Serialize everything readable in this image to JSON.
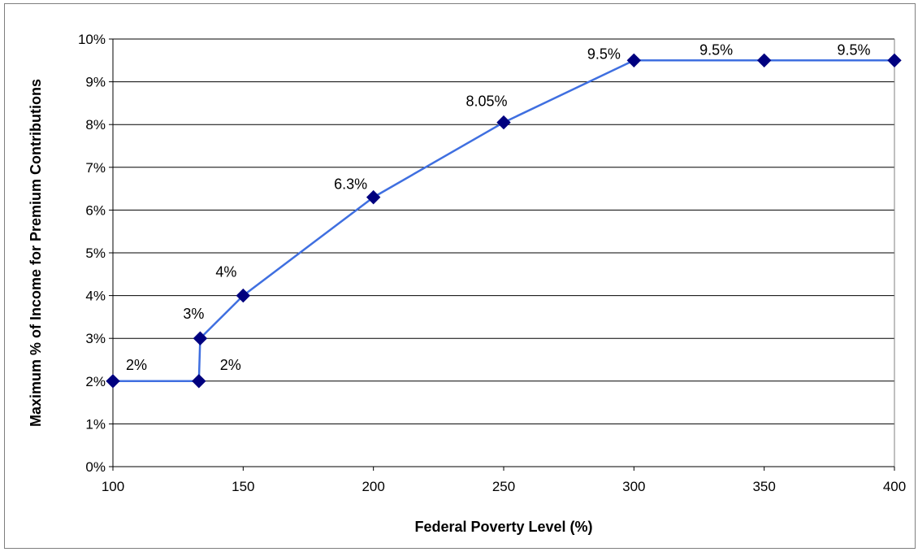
{
  "chart_data": {
    "type": "line",
    "title": "",
    "xlabel": "Federal Poverty Level (%)",
    "ylabel": "Maximum % of Income for Premium Contributions",
    "xlim": [
      100,
      400
    ],
    "ylim": [
      0,
      10
    ],
    "x_ticks": [
      100,
      150,
      200,
      250,
      300,
      350,
      400
    ],
    "y_ticks": [
      0,
      1,
      2,
      3,
      4,
      5,
      6,
      7,
      8,
      9,
      10
    ],
    "y_tick_labels": [
      "0%",
      "1%",
      "2%",
      "3%",
      "4%",
      "5%",
      "6%",
      "7%",
      "8%",
      "9%",
      "10%"
    ],
    "grid": "horizontal",
    "legend": "none",
    "series": [
      {
        "line_color": "#3f6fe0",
        "marker_color": "#00007f",
        "marker": "diamond",
        "points": [
          {
            "x": 100,
            "y": 2,
            "label": "2%"
          },
          {
            "x": 133,
            "y": 2,
            "label": "2%"
          },
          {
            "x": 133.5,
            "y": 3,
            "label": "3%"
          },
          {
            "x": 150,
            "y": 4,
            "label": "4%"
          },
          {
            "x": 200,
            "y": 6.3,
            "label": "6.3%"
          },
          {
            "x": 250,
            "y": 8.05,
            "label": "8.05%"
          },
          {
            "x": 300,
            "y": 9.5,
            "label": "9.5%"
          },
          {
            "x": 350,
            "y": 9.5,
            "label": "9.5%"
          },
          {
            "x": 400,
            "y": 9.5,
            "label": "9.5%"
          }
        ]
      }
    ]
  }
}
